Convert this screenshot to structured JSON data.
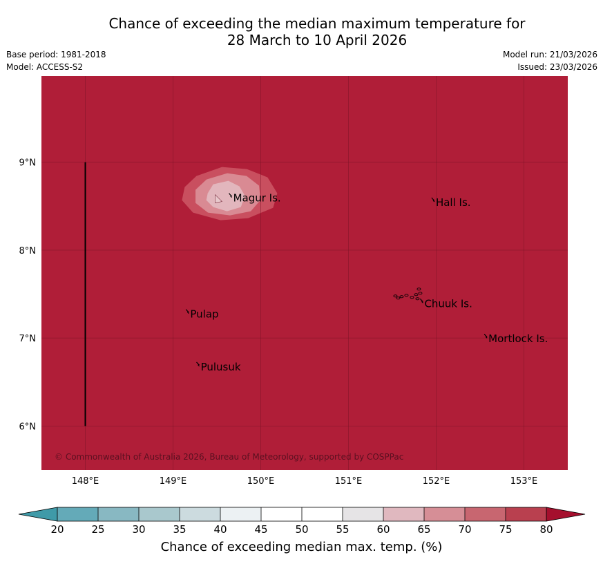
{
  "title": {
    "line1": "Chance of exceeding the median maximum temperature for",
    "line2": "28 March to 10 April 2026"
  },
  "meta": {
    "base_period": "Base period: 1981-2018",
    "model": "Model: ACCESS-S2",
    "model_run": "Model run: 21/03/2026",
    "issued": "Issued: 23/03/2026"
  },
  "map": {
    "extent": {
      "lon_min": 147.5,
      "lon_max": 153.5,
      "lat_min": 5.5,
      "lat_max": 9.98
    },
    "background_color": "#b01e38",
    "lon_ticks": [
      {
        "value": 148,
        "label": "148°E"
      },
      {
        "value": 149,
        "label": "149°E"
      },
      {
        "value": 150,
        "label": "150°E"
      },
      {
        "value": 151,
        "label": "151°E"
      },
      {
        "value": 152,
        "label": "152°E"
      },
      {
        "value": 153,
        "label": "153°E"
      }
    ],
    "lat_ticks": [
      {
        "value": 9,
        "label": "9°N"
      },
      {
        "value": 8,
        "label": "8°N"
      },
      {
        "value": 7,
        "label": "7°N"
      },
      {
        "value": 6,
        "label": "6°N"
      }
    ],
    "boundary_line": {
      "lon": 148.0,
      "lat_from": 6.0,
      "lat_to": 9.0
    },
    "places": [
      {
        "name": "Magur Is.",
        "lon": 149.67,
        "lat": 8.6
      },
      {
        "name": "Hall Is.",
        "lon": 151.98,
        "lat": 8.55
      },
      {
        "name": "Pulap",
        "lon": 149.18,
        "lat": 7.28
      },
      {
        "name": "Chuuk Is.",
        "lon": 151.85,
        "lat": 7.4
      },
      {
        "name": "Mortlock Is.",
        "lon": 152.58,
        "lat": 7.0
      },
      {
        "name": "Pulusuk",
        "lon": 149.3,
        "lat": 6.68
      }
    ],
    "anomaly_contours": [
      {
        "level": "70-75",
        "color": "#c94f5f",
        "center_lon": 149.7,
        "center_lat": 8.6
      },
      {
        "level": "65-70",
        "color": "#d98a93",
        "center_lon": 149.65,
        "center_lat": 8.6
      },
      {
        "level": "60-65",
        "color": "#e2b6bd",
        "center_lon": 149.6,
        "center_lat": 8.6
      }
    ],
    "copyright": "© Commonwealth of Australia 2026, Bureau of Meteorology, supported by COSPPac"
  },
  "colorbar": {
    "label": "Chance of exceeding median max. temp. (%)",
    "ticks": [
      "20",
      "25",
      "30",
      "35",
      "40",
      "45",
      "50",
      "55",
      "60",
      "65",
      "70",
      "75",
      "80"
    ],
    "under_color": "#3f9aa8",
    "over_color": "#a50f2d",
    "colors": [
      "#64aab8",
      "#88b8c2",
      "#a9c8cd",
      "#ccdbdf",
      "#ecf1f3",
      "#ffffff",
      "#ffffff",
      "#e6e4e6",
      "#e0b8bf",
      "#d68e96",
      "#c86670",
      "#b9404f"
    ]
  }
}
